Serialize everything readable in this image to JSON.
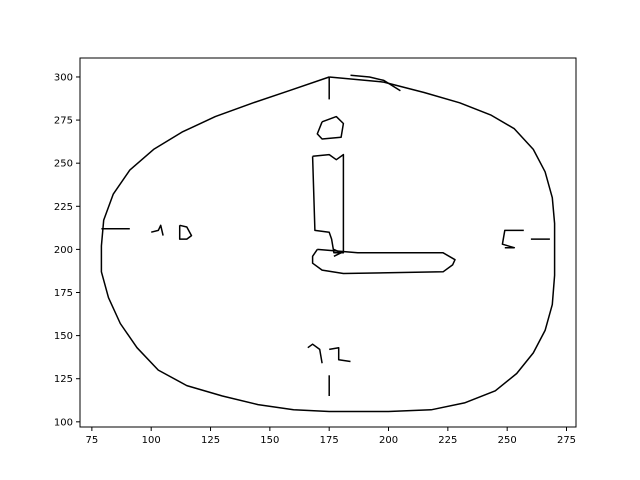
{
  "chart_data": {
    "type": "line",
    "title": "",
    "xlabel": "",
    "ylabel": "",
    "xlim": [
      70,
      279
    ],
    "ylim": [
      97,
      311
    ],
    "x_ticks": [
      75,
      100,
      125,
      150,
      175,
      200,
      225,
      250,
      275
    ],
    "y_ticks": [
      100,
      125,
      150,
      175,
      200,
      225,
      250,
      275,
      300
    ],
    "grid": false,
    "legend": "none",
    "line_color": "#000000",
    "series": [
      {
        "points": [
          [
            175,
            300
          ],
          [
            198,
            297
          ],
          [
            215,
            291
          ],
          [
            230,
            285
          ],
          [
            243,
            278
          ],
          [
            253,
            270
          ],
          [
            261,
            258
          ],
          [
            266,
            245
          ],
          [
            269,
            230
          ],
          [
            270,
            215
          ],
          [
            270,
            200
          ],
          [
            270,
            185
          ],
          [
            269,
            168
          ],
          [
            266,
            153
          ],
          [
            261,
            140
          ],
          [
            254,
            128
          ],
          [
            245,
            118
          ],
          [
            232,
            111
          ],
          [
            218,
            107
          ],
          [
            200,
            106
          ],
          [
            175,
            106
          ],
          [
            160,
            107
          ],
          [
            145,
            110
          ],
          [
            130,
            115
          ],
          [
            115,
            121
          ],
          [
            103,
            130
          ],
          [
            94,
            143
          ],
          [
            87,
            157
          ],
          [
            82,
            172
          ],
          [
            79,
            187
          ],
          [
            79,
            202
          ],
          [
            80,
            217
          ],
          [
            84,
            232
          ],
          [
            91,
            246
          ],
          [
            101,
            258
          ],
          [
            113,
            268
          ],
          [
            127,
            277
          ],
          [
            143,
            285
          ],
          [
            158,
            292
          ],
          [
            175,
            300
          ]
        ]
      },
      {
        "points": [
          [
            184,
            301
          ],
          [
            192,
            300
          ],
          [
            198,
            298
          ],
          [
            205,
            292
          ]
        ]
      },
      {
        "points": [
          [
            175,
            300
          ],
          [
            175,
            287
          ]
        ]
      },
      {
        "points": [
          [
            172,
            274
          ],
          [
            178,
            277
          ],
          [
            181,
            273
          ],
          [
            180,
            265
          ],
          [
            172,
            264
          ],
          [
            170,
            267
          ],
          [
            172,
            274
          ]
        ]
      },
      {
        "points": [
          [
            168,
            254
          ],
          [
            175,
            255
          ],
          [
            178,
            252
          ],
          [
            181,
            255
          ],
          [
            181,
            198
          ],
          [
            177,
            198
          ],
          [
            176,
            206
          ],
          [
            175,
            210
          ],
          [
            169,
            211
          ],
          [
            168,
            254
          ]
        ]
      },
      {
        "points": [
          [
            170,
            200
          ],
          [
            187,
            198
          ],
          [
            223,
            198
          ],
          [
            228,
            194
          ],
          [
            227,
            191
          ],
          [
            223,
            187
          ],
          [
            181,
            186
          ],
          [
            172,
            188
          ],
          [
            168,
            192
          ],
          [
            168,
            196
          ],
          [
            170,
            200
          ]
        ]
      },
      {
        "points": [
          [
            177,
            200
          ],
          [
            180,
            198
          ],
          [
            177,
            196
          ]
        ]
      },
      {
        "points": [
          [
            79,
            212
          ],
          [
            91,
            212
          ]
        ]
      },
      {
        "points": [
          [
            100,
            210
          ],
          [
            103,
            211
          ],
          [
            104,
            214
          ],
          [
            105,
            208
          ]
        ]
      },
      {
        "points": [
          [
            112,
            214
          ],
          [
            115,
            213
          ],
          [
            117,
            208
          ],
          [
            115,
            206
          ],
          [
            112,
            206
          ],
          [
            112,
            214
          ]
        ]
      },
      {
        "points": [
          [
            260,
            206
          ],
          [
            268,
            206
          ]
        ]
      },
      {
        "points": [
          [
            257,
            211
          ],
          [
            249,
            211
          ],
          [
            248,
            203
          ],
          [
            253,
            201
          ],
          [
            249,
            201
          ]
        ]
      },
      {
        "points": [
          [
            175,
            115
          ],
          [
            175,
            127
          ]
        ]
      },
      {
        "points": [
          [
            166,
            143
          ],
          [
            168,
            145
          ],
          [
            171,
            142
          ],
          [
            172,
            134
          ]
        ]
      },
      {
        "points": [
          [
            175,
            142
          ],
          [
            179,
            143
          ],
          [
            179,
            136
          ],
          [
            184,
            135
          ]
        ]
      }
    ]
  }
}
